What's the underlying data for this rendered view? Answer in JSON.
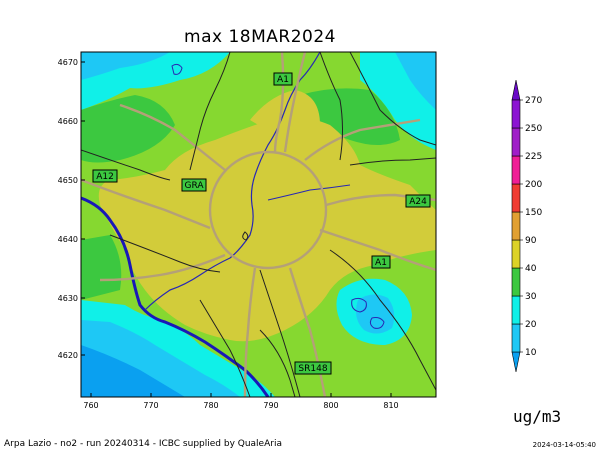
{
  "title": "max 18MAR2024",
  "unit": "ug/m3",
  "footer": "Arpa Lazio - no2 - run 20240314 - ICBC supplied by QualeAria",
  "date": "2024-03-14-05:40",
  "x_ticks": [
    "760",
    "770",
    "780",
    "790",
    "800",
    "810"
  ],
  "y_ticks": [
    "4670",
    "4660",
    "4650",
    "4640",
    "4630",
    "4620"
  ],
  "road_labels": [
    "A1",
    "A12",
    "GRA",
    "A24",
    "A1",
    "SR148"
  ],
  "colorbar": {
    "levels": [
      "10",
      "20",
      "30",
      "40",
      "90",
      "150",
      "200",
      "225",
      "250",
      "270"
    ],
    "colors": [
      "#0aa0f0",
      "#1ec8f5",
      "#10f0e8",
      "#3cc840",
      "#dcd228",
      "#e1a032",
      "#f03c32",
      "#f01e96",
      "#a01ec8",
      "#8c14d2",
      "#6a0ac8"
    ]
  },
  "field_colors": {
    "urban": "#d2cc3a",
    "suburban": "#86d830",
    "vegetation": "#3cc83c",
    "coast": "#0ec8e8",
    "sea": "#0aa0f0",
    "water_line": "#2020c8",
    "roads": "#c8b48c"
  }
}
